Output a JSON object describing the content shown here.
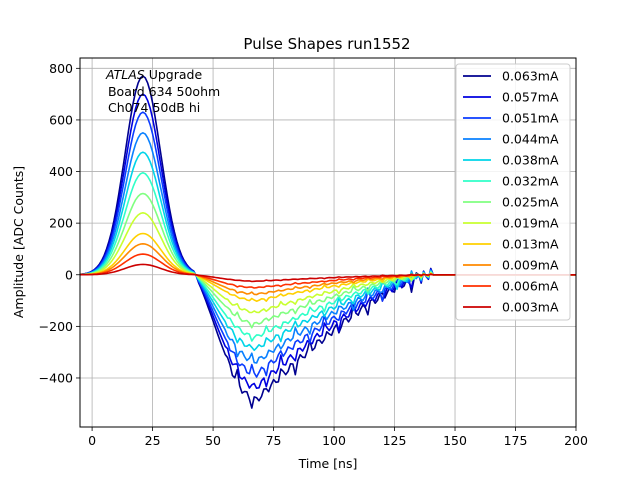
{
  "chart_data": {
    "type": "line",
    "title": "Pulse Shapes run1552",
    "xlabel": "Time [ns]",
    "ylabel": "Amplitude [ADC Counts]",
    "xlim": [
      -5,
      200
    ],
    "ylim": [
      -590,
      840
    ],
    "grid": true,
    "xticks": [
      0,
      25,
      50,
      75,
      100,
      125,
      150,
      175,
      200
    ],
    "yticks": [
      -400,
      -200,
      0,
      200,
      400,
      600,
      800
    ],
    "xtick_labels": [
      "0",
      "25",
      "50",
      "75",
      "100",
      "125",
      "150",
      "175",
      "200"
    ],
    "ytick_labels": [
      "−400",
      "−200",
      "0",
      "200",
      "400",
      "600",
      "800"
    ],
    "legend_location": "upper right",
    "annotation": {
      "atlas": "ATLAS",
      "line1_rest": " Upgrade",
      "line2": " Board 634 50ohm",
      "line3": " Ch074 50dB hi"
    },
    "series": [
      {
        "name": "0.063mA",
        "color": "#00008f",
        "peak": 770,
        "trough": -485
      },
      {
        "name": "0.057mA",
        "color": "#0000e0",
        "peak": 700,
        "trough": -435
      },
      {
        "name": "0.051mA",
        "color": "#0a3cff",
        "peak": 630,
        "trough": -385
      },
      {
        "name": "0.044mA",
        "color": "#0a80ff",
        "peak": 550,
        "trough": -335
      },
      {
        "name": "0.038mA",
        "color": "#00d4e8",
        "peak": 475,
        "trough": -285
      },
      {
        "name": "0.032mA",
        "color": "#30ffc8",
        "peak": 395,
        "trough": -240
      },
      {
        "name": "0.025mA",
        "color": "#80ff80",
        "peak": 315,
        "trough": -190
      },
      {
        "name": "0.019mA",
        "color": "#c8ff30",
        "peak": 240,
        "trough": -145
      },
      {
        "name": "0.013mA",
        "color": "#ffd000",
        "peak": 160,
        "trough": -100
      },
      {
        "name": "0.009mA",
        "color": "#ff8a00",
        "peak": 120,
        "trough": -75
      },
      {
        "name": "0.006mA",
        "color": "#ff3000",
        "peak": 80,
        "trough": -50
      },
      {
        "name": "0.003mA",
        "color": "#cc0000",
        "peak": 40,
        "trough": -25
      }
    ]
  }
}
